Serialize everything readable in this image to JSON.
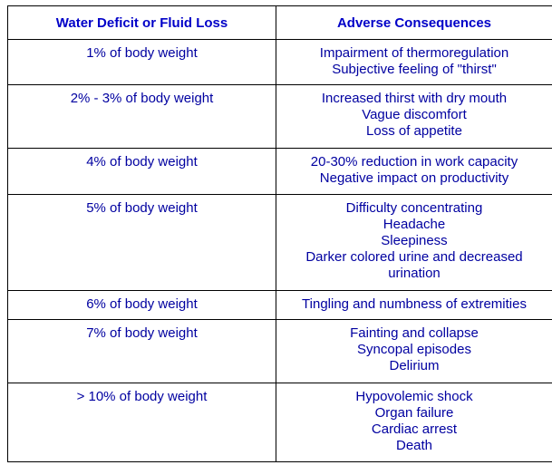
{
  "headers": {
    "col1": "Water Deficit or Fluid Loss",
    "col2": "Adverse Consequences"
  },
  "rows": [
    {
      "loss": "1% of body weight",
      "consequences": [
        "Impairment of thermoregulation",
        "Subjective feeling of \"thirst\""
      ]
    },
    {
      "loss": "2% - 3% of body weight",
      "consequences": [
        "Increased thirst with dry mouth",
        "Vague discomfort",
        "Loss of appetite"
      ]
    },
    {
      "loss": "4% of body weight",
      "consequences": [
        "20-30% reduction in work capacity",
        "Negative impact on productivity"
      ]
    },
    {
      "loss": "5% of body weight",
      "consequences": [
        "Difficulty concentrating",
        "Headache",
        "Sleepiness",
        "Darker colored urine and decreased",
        "urination"
      ]
    },
    {
      "loss": "6% of body weight",
      "consequences": [
        "Tingling and numbness of extremities"
      ]
    },
    {
      "loss": "7% of body weight",
      "consequences": [
        "Fainting and collapse",
        "Syncopal episodes",
        "Delirium"
      ]
    },
    {
      "loss": "> 10% of body weight",
      "consequences": [
        "Hypovolemic shock",
        "Organ failure",
        "Cardiac arrest",
        "Death"
      ]
    }
  ],
  "colors": {
    "text": "#0000a0",
    "header_text": "#0000c8",
    "border": "#000000"
  }
}
